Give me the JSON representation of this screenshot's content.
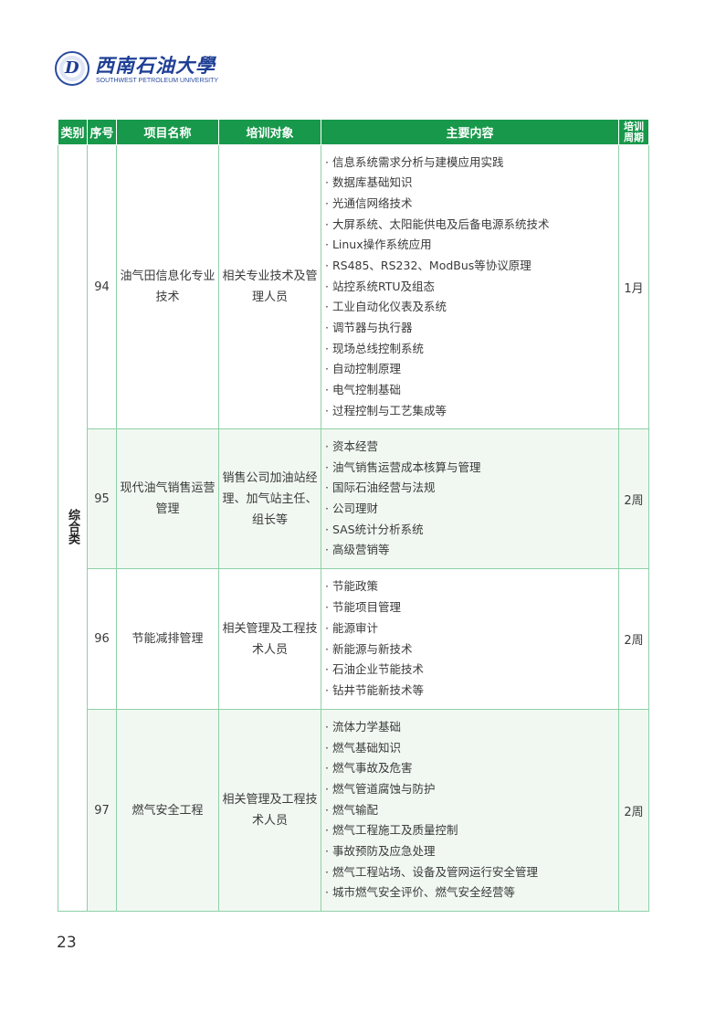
{
  "logo": {
    "name_cn": "西南石油大學",
    "name_en": "SOUTHWEST PETROLEUM UNIVERSITY",
    "brand_color": "#1f3f95"
  },
  "table": {
    "header_color": "#17984a",
    "headers": [
      "类别",
      "序号",
      "项目名称",
      "培训对象",
      "主要内容",
      "培训周期"
    ],
    "category": "综合类",
    "rows": [
      {
        "no": "94",
        "name": "油气田信息化专业技术",
        "target": "相关专业技术及管理人员",
        "period": "1月",
        "items": [
          "· 信息系统需求分析与建模应用实践",
          "· 数据库基础知识",
          "· 光通信网络技术",
          "· 大屏系统、太阳能供电及后备电源系统技术",
          "· Linux操作系统应用",
          "· RS485、RS232、ModBus等协议原理",
          "· 站控系统RTU及组态",
          "· 工业自动化仪表及系统",
          "· 调节器与执行器",
          "· 现场总线控制系统",
          "· 自动控制原理",
          "· 电气控制基础",
          "· 过程控制与工艺集成等"
        ]
      },
      {
        "no": "95",
        "name": "现代油气销售运营管理",
        "target": "销售公司加油站经理、加气站主任、组长等",
        "period": "2周",
        "items": [
          "· 资本经营",
          "· 油气销售运营成本核算与管理",
          "· 国际石油经营与法规",
          "· 公司理财",
          "· SAS统计分析系统",
          "· 高级营销等"
        ]
      },
      {
        "no": "96",
        "name": "节能减排管理",
        "target": "相关管理及工程技术人员",
        "period": "2周",
        "items": [
          "· 节能政策",
          "· 节能项目管理",
          "· 能源审计",
          "· 新能源与新技术",
          "· 石油企业节能技术",
          "· 钻井节能新技术等"
        ]
      },
      {
        "no": "97",
        "name": "燃气安全工程",
        "target": "相关管理及工程技术人员",
        "period": "2周",
        "items": [
          "· 流体力学基础",
          "· 燃气基础知识",
          "· 燃气事故及危害",
          "· 燃气管道腐蚀与防护",
          "· 燃气输配",
          "· 燃气工程施工及质量控制",
          "· 事故预防及应急处理",
          "· 燃气工程站场、设备及管网运行安全管理",
          "· 城市燃气安全评价、燃气安全经营等"
        ]
      }
    ]
  },
  "page_number": "23"
}
